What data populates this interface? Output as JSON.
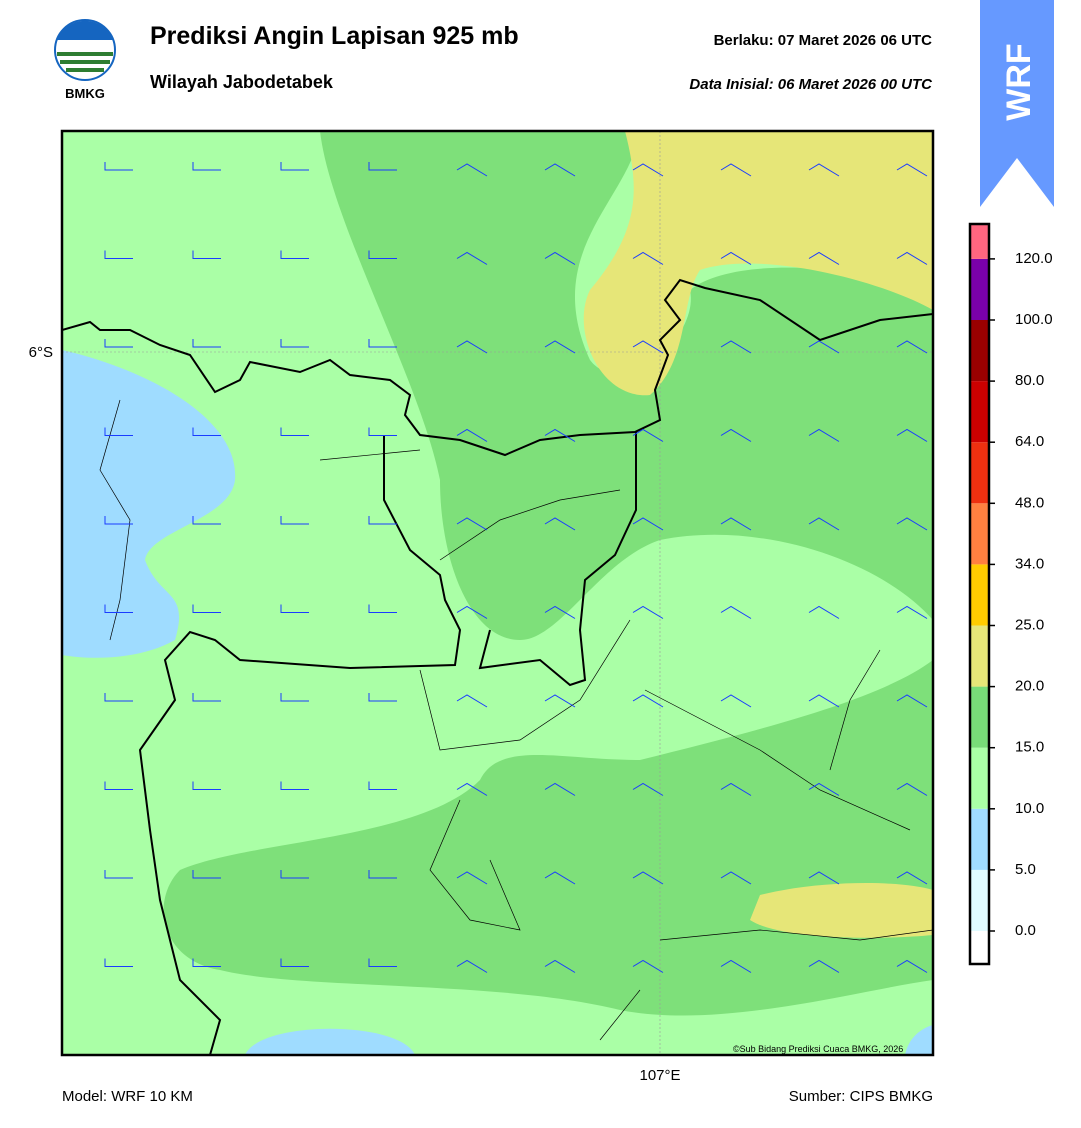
{
  "header": {
    "logo_text": "BMKG",
    "title": "Prediksi Angin Lapisan 925 mb",
    "subtitle": "Wilayah Jabodetabek",
    "valid": "Berlaku:  07 Maret 2026 06 UTC",
    "init": "Data Inisial:  06 Maret 2026 00 UTC",
    "badge": "WRF"
  },
  "map": {
    "lat_label": "6°S",
    "lon_label": "107°E",
    "credit": "©Sub Bidang Prediksi Cuaca BMKG, 2026"
  },
  "colorbar": {
    "labels": [
      "0.0",
      "5.0",
      "10.0",
      "15.0",
      "20.0",
      "25.0",
      "34.0",
      "48.0",
      "64.0",
      "80.0",
      "100.0",
      "120.0"
    ]
  },
  "footer": {
    "model": "Model: WRF 10 KM",
    "source": "Sumber: CIPS BMKG"
  }
}
